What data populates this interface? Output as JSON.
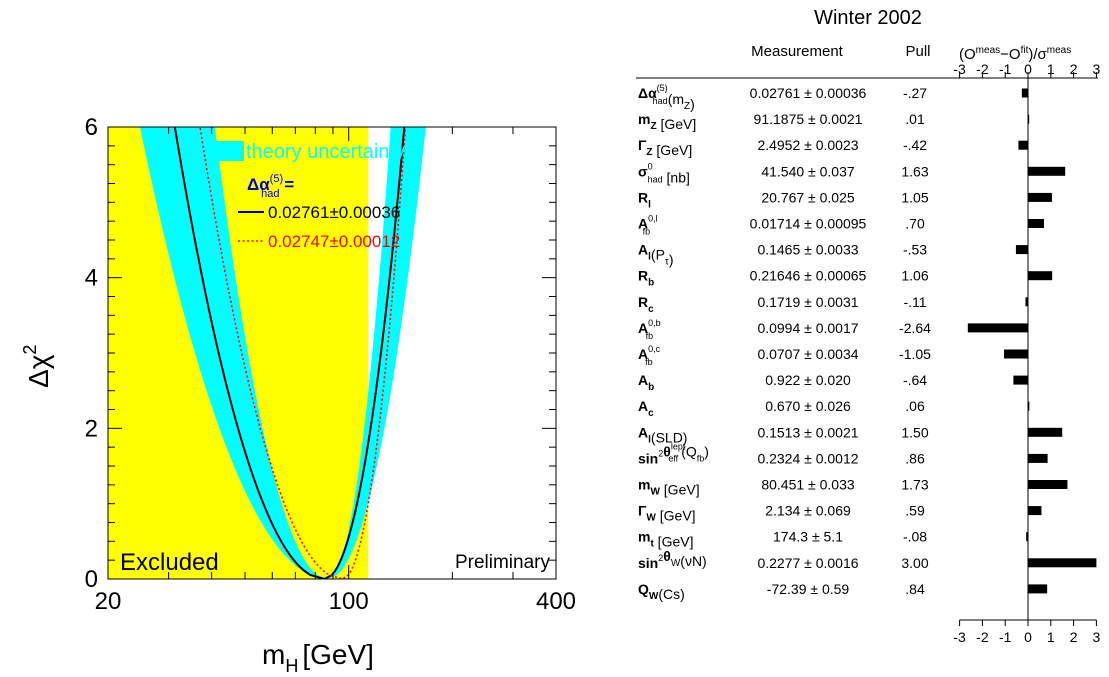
{
  "chart_data": [
    {
      "type": "line",
      "title": "",
      "xlabel": "m",
      "xlabel_sub": "H",
      "xlabel_unit": "[GeV]",
      "ylabel": "Δχ",
      "ylabel_sup": "2",
      "x_scale": "log",
      "xlim": [
        20,
        400
      ],
      "ylim": [
        0,
        6
      ],
      "x_tick_labels": [
        "20",
        "100",
        "400"
      ],
      "y_tick_labels": [
        "0",
        "2",
        "4",
        "6"
      ],
      "excluded_region": {
        "label": "Excluded",
        "x_max": 114,
        "color": "#ffff00"
      },
      "band": {
        "label": "theory uncertainty",
        "color": "#00ffff"
      },
      "legend": {
        "header": "Δα",
        "header_sub": "had",
        "header_sup": "(5)",
        "header_eq": " ="
      },
      "preliminary_label": "Preliminary",
      "series": [
        {
          "name": "0.02761±0.00036",
          "color": "#000000",
          "style": "solid",
          "minimum_x": 85,
          "x": [
            20.6,
            30,
            40,
            50,
            60,
            70,
            80,
            85,
            90,
            100,
            120,
            150,
            180,
            200,
            215
          ],
          "y": [
            6.0,
            3.84,
            2.25,
            1.28,
            0.64,
            0.24,
            0.04,
            0.0,
            0.02,
            0.09,
            0.49,
            1.61,
            3.17,
            4.42,
            5.62
          ],
          "band_half_width_y": 0.55
        },
        {
          "name": "0.02747±0.00012",
          "color": "#ff0000",
          "style": "dotted",
          "minimum_x": 96,
          "x": [
            41,
            50,
            60,
            70,
            80,
            90,
            96,
            100,
            120,
            150,
            180,
            200,
            230
          ],
          "y": [
            6.0,
            3.78,
            2.13,
            1.05,
            0.42,
            0.08,
            0.0,
            0.01,
            0.28,
            1.25,
            2.52,
            3.53,
            5.14
          ]
        }
      ]
    },
    {
      "type": "bar",
      "title": "Winter 2002",
      "column_headers": {
        "measurement": "Measurement",
        "pull": "Pull",
        "pull_axis": "(O",
        "pull_axis_sup1": "meas",
        "pull_axis_mid": "−O",
        "pull_axis_sup2": "fit",
        "pull_axis_end": ")/σ",
        "pull_axis_sup3": "meas"
      },
      "xlim": [
        -3,
        3
      ],
      "x_tick_labels": [
        "-3",
        "-2",
        "-1",
        "0",
        "1",
        "2",
        "3"
      ],
      "rows": [
        {
          "base": "Δα",
          "sup": "(5)",
          "sub": "had",
          "tail": "(m",
          "tail_sub": "Z",
          "tail_end": ")",
          "measurement": "0.02761 ± 0.00036",
          "pull_label": "-.27",
          "pull": -0.27
        },
        {
          "base": "m",
          "sup": "",
          "sub": "Z",
          "tail": " [GeV]",
          "tail_sub": "",
          "tail_end": "",
          "measurement": "91.1875 ± 0.0021",
          "pull_label": ".01",
          "pull": 0.01
        },
        {
          "base": "Γ",
          "sup": "",
          "sub": "Z",
          "tail": " [GeV]",
          "tail_sub": "",
          "tail_end": "",
          "measurement": "2.4952 ± 0.0023",
          "pull_label": "-.42",
          "pull": -0.42
        },
        {
          "base": "σ",
          "sup": "0",
          "sub": "had",
          "tail": " [nb]",
          "tail_sub": "",
          "tail_end": "",
          "measurement": "41.540 ± 0.037",
          "pull_label": "1.63",
          "pull": 1.63
        },
        {
          "base": "R",
          "sup": "",
          "sub": "l",
          "tail": "",
          "tail_sub": "",
          "tail_end": "",
          "measurement": "20.767 ± 0.025",
          "pull_label": "1.05",
          "pull": 1.05
        },
        {
          "base": "A",
          "sup": "0,l",
          "sub": "fb",
          "tail": "",
          "tail_sub": "",
          "tail_end": "",
          "measurement": "0.01714 ± 0.00095",
          "pull_label": ".70",
          "pull": 0.7
        },
        {
          "base": "A",
          "sup": "",
          "sub": "l",
          "tail": "(P",
          "tail_sub": "τ",
          "tail_end": ")",
          "measurement": "0.1465 ± 0.0033",
          "pull_label": "-.53",
          "pull": -0.53
        },
        {
          "base": "R",
          "sup": "",
          "sub": "b",
          "tail": "",
          "tail_sub": "",
          "tail_end": "",
          "measurement": "0.21646 ± 0.00065",
          "pull_label": "1.06",
          "pull": 1.06
        },
        {
          "base": "R",
          "sup": "",
          "sub": "c",
          "tail": "",
          "tail_sub": "",
          "tail_end": "",
          "measurement": "0.1719 ± 0.0031",
          "pull_label": "-.11",
          "pull": -0.11
        },
        {
          "base": "A",
          "sup": "0,b",
          "sub": "fb",
          "tail": "",
          "tail_sub": "",
          "tail_end": "",
          "measurement": "0.0994 ± 0.0017",
          "pull_label": "-2.64",
          "pull": -2.64
        },
        {
          "base": "A",
          "sup": "0,c",
          "sub": "fb",
          "tail": "",
          "tail_sub": "",
          "tail_end": "",
          "measurement": "0.0707 ± 0.0034",
          "pull_label": "-1.05",
          "pull": -1.05
        },
        {
          "base": "A",
          "sup": "",
          "sub": "b",
          "tail": "",
          "tail_sub": "",
          "tail_end": "",
          "measurement": "0.922 ± 0.020",
          "pull_label": "-.64",
          "pull": -0.64
        },
        {
          "base": "A",
          "sup": "",
          "sub": "c",
          "tail": "",
          "tail_sub": "",
          "tail_end": "",
          "measurement": "0.670 ± 0.026",
          "pull_label": ".06",
          "pull": 0.06
        },
        {
          "base": "A",
          "sup": "",
          "sub": "l",
          "tail": "(SLD)",
          "tail_sub": "",
          "tail_end": "",
          "measurement": "0.1513 ± 0.0021",
          "pull_label": "1.50",
          "pull": 1.5
        },
        {
          "base": "sin",
          "sup": "2",
          "sub": "",
          "tail": "θ",
          "tail_sub": "",
          "tail_end": "",
          "extra_sup": "lept",
          "extra_sub": "eff",
          "extra_tail": "(Q",
          "extra_tail_sub": "fb",
          "extra_end": ")",
          "measurement": "0.2324 ± 0.0012",
          "pull_label": ".86",
          "pull": 0.86
        },
        {
          "base": "m",
          "sup": "",
          "sub": "W",
          "tail": " [GeV]",
          "tail_sub": "",
          "tail_end": "",
          "measurement": "80.451 ± 0.033",
          "pull_label": "1.73",
          "pull": 1.73
        },
        {
          "base": "Γ",
          "sup": "",
          "sub": "W",
          "tail": " [GeV]",
          "tail_sub": "",
          "tail_end": "",
          "measurement": "2.134 ± 0.069",
          "pull_label": ".59",
          "pull": 0.59
        },
        {
          "base": "m",
          "sup": "",
          "sub": "t",
          "tail": " [GeV]",
          "tail_sub": "",
          "tail_end": "",
          "measurement": "174.3 ± 5.1",
          "pull_label": "-.08",
          "pull": -0.08
        },
        {
          "base": "sin",
          "sup": "2",
          "sub": "",
          "tail": "θ",
          "tail_sub": "W",
          "tail_end": "(νN)",
          "measurement": "0.2277 ± 0.0016",
          "pull_label": "3.00",
          "pull": 3.0
        },
        {
          "base": "Q",
          "sup": "",
          "sub": "W",
          "tail": "(Cs)",
          "tail_sub": "",
          "tail_end": "",
          "measurement": "-72.39 ± 0.59",
          "pull_label": ".84",
          "pull": 0.84
        }
      ]
    }
  ]
}
